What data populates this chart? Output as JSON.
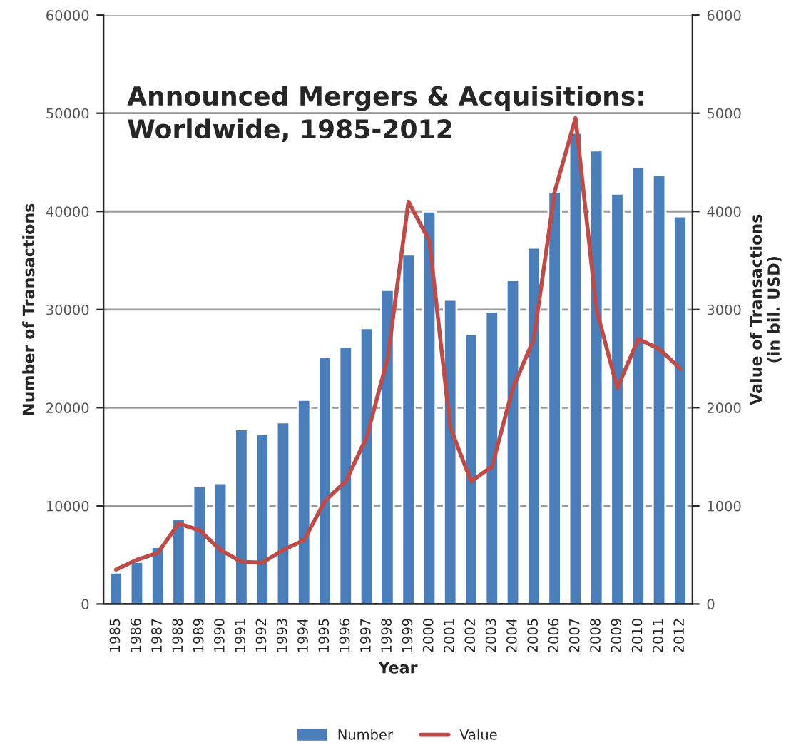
{
  "chart_data": {
    "type": "bar",
    "title": "Announced Mergers & Acquisitions:\nWorldwide, 1985-2012",
    "xlabel": "Year",
    "ylabel": "Number of Transactions",
    "y2label": "Value of Transactions\n(in bil. USD)",
    "categories": [
      "1985",
      "1986",
      "1987",
      "1988",
      "1989",
      "1990",
      "1991",
      "1992",
      "1993",
      "1994",
      "1995",
      "1996",
      "1997",
      "1998",
      "1999",
      "2000",
      "2001",
      "2002",
      "2003",
      "2004",
      "2005",
      "2006",
      "2007",
      "2008",
      "2009",
      "2010",
      "2011",
      "2012"
    ],
    "series": [
      {
        "name": "Number",
        "color": "#4a7ebb",
        "values": [
          3200,
          4300,
          5800,
          8700,
          12000,
          12300,
          17800,
          17300,
          18500,
          20800,
          25200,
          26200,
          28100,
          32000,
          35600,
          40000,
          31000,
          27500,
          29800,
          33000,
          36300,
          42000,
          48000,
          46200,
          41800,
          44500,
          43700,
          39500
        ]
      },
      {
        "name": "Value",
        "type": "line",
        "axis": "y2",
        "color": "#be4b48",
        "values": [
          350,
          450,
          520,
          820,
          750,
          550,
          430,
          420,
          550,
          650,
          1050,
          1250,
          1700,
          2500,
          4100,
          3700,
          1800,
          1250,
          1400,
          2200,
          2700,
          4200,
          4950,
          3000,
          2200,
          2700,
          2600,
          2400
        ]
      }
    ],
    "ylim": [
      0,
      60000
    ],
    "yticks": [
      0,
      10000,
      20000,
      30000,
      40000,
      50000,
      60000
    ],
    "y2lim": [
      0,
      6000
    ],
    "y2ticks": [
      0,
      1000,
      2000,
      3000,
      4000,
      5000,
      6000
    ],
    "grid": "y",
    "legend": "bottom"
  }
}
